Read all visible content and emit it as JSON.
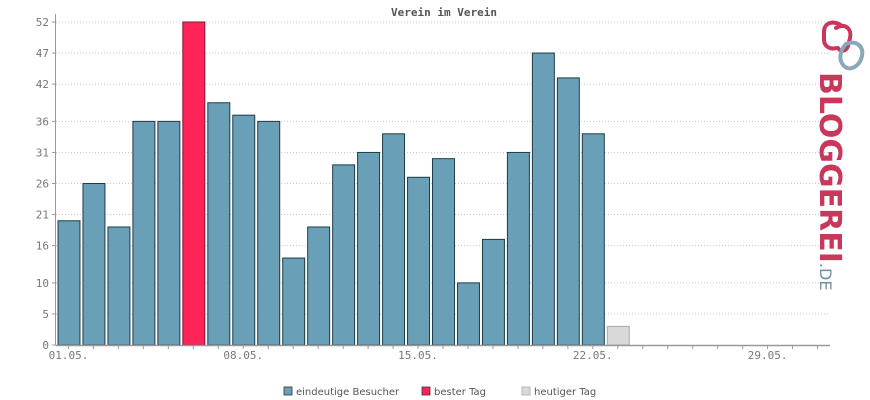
{
  "chart_data": {
    "type": "bar",
    "title": "Verein im Verein",
    "xlabel": "",
    "ylabel": "",
    "ylim": [
      0,
      52
    ],
    "yticks": [
      0,
      5,
      10,
      16,
      21,
      26,
      31,
      36,
      42,
      47,
      52
    ],
    "categories": [
      "01.05.",
      "02.05.",
      "03.05.",
      "04.05.",
      "05.05.",
      "06.05.",
      "07.05.",
      "08.05.",
      "09.05.",
      "10.05.",
      "11.05.",
      "12.05.",
      "13.05.",
      "14.05.",
      "15.05.",
      "16.05.",
      "17.05.",
      "18.05.",
      "19.05.",
      "20.05.",
      "21.05.",
      "22.05.",
      "23.05.",
      "24.05.",
      "25.05.",
      "26.05.",
      "27.05.",
      "28.05.",
      "29.05.",
      "30.05.",
      "31.05."
    ],
    "xtick_labels": [
      "01.05.",
      "08.05.",
      "15.05.",
      "22.05.",
      "29.05."
    ],
    "xtick_positions": [
      0,
      7,
      14,
      21,
      28
    ],
    "values": [
      20,
      26,
      19,
      36,
      36,
      52,
      39,
      37,
      36,
      14,
      19,
      29,
      31,
      34,
      27,
      30,
      10,
      17,
      31,
      47,
      43,
      34,
      3,
      null,
      null,
      null,
      null,
      null,
      null,
      null,
      null
    ],
    "best_day_index": 5,
    "today_index": 22,
    "grid": true,
    "legend_position": "bottom",
    "colors": {
      "visitors": "#6a9fb8",
      "best": "#ff2458",
      "today": "#d9d9d9",
      "bar_stroke": "#1e3c46",
      "today_stroke": "#aaaaaa"
    },
    "legend": [
      {
        "key": "visitors",
        "label": "eindeutige Besucher"
      },
      {
        "key": "best",
        "label": "bester Tag"
      },
      {
        "key": "today",
        "label": "heutiger Tag"
      }
    ]
  },
  "logo": {
    "text_main": "BLOGGEREI",
    "text_suffix": ".DE",
    "color_main": "#c9385a",
    "color_suffix": "#6a8fa4",
    "icon": "bloggerei-logo-icon"
  }
}
